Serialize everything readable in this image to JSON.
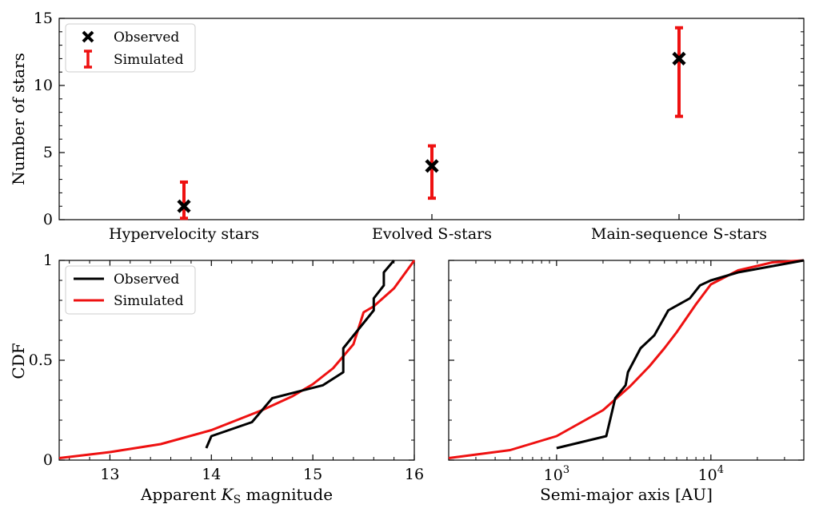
{
  "chart_data": [
    {
      "type": "scatter",
      "categories": [
        "Hypervelocity stars",
        "Evolved S-stars",
        "Main-sequence S-stars"
      ],
      "ylabel": "Number of stars",
      "xlabel": "",
      "ylim": [
        0,
        15
      ],
      "yticks": [
        "0",
        "5",
        "10",
        "15"
      ],
      "legend": {
        "placement": "top-left",
        "entries": [
          "Observed",
          "Simulated"
        ]
      },
      "series": [
        {
          "name": "Observed",
          "marker": "x",
          "color": "#000000",
          "values": [
            1,
            4,
            12
          ]
        },
        {
          "name": "Simulated",
          "marker": "errorbar",
          "color": "#ee1111",
          "lower": [
            0.1,
            1.6,
            7.7
          ],
          "upper": [
            2.8,
            5.5,
            14.3
          ]
        }
      ]
    },
    {
      "type": "line",
      "xlabel_main": "Apparent ",
      "xlabel_sym": "K",
      "xlabel_sub": "S",
      "xlabel_tail": " magnitude",
      "ylabel": "CDF",
      "xlim": [
        12.5,
        16
      ],
      "ylim": [
        0,
        1
      ],
      "xticks": [
        "13",
        "14",
        "15",
        "16"
      ],
      "yticks": [
        "0",
        "0.5",
        "1"
      ],
      "legend": {
        "placement": "top-left",
        "entries": [
          "Observed",
          "Simulated"
        ]
      },
      "series": [
        {
          "name": "Observed",
          "color": "#000000",
          "points": [
            [
              13.95,
              0.06
            ],
            [
              14.0,
              0.12
            ],
            [
              14.4,
              0.19
            ],
            [
              14.5,
              0.25
            ],
            [
              14.6,
              0.31
            ],
            [
              15.1,
              0.375
            ],
            [
              15.3,
              0.44
            ],
            [
              15.3,
              0.56
            ],
            [
              15.6,
              0.75
            ],
            [
              15.6,
              0.81
            ],
            [
              15.7,
              0.875
            ],
            [
              15.7,
              0.94
            ],
            [
              15.8,
              1.0
            ]
          ]
        },
        {
          "name": "Simulated",
          "color": "#ee1111",
          "points": [
            [
              12.5,
              0.01
            ],
            [
              13.0,
              0.04
            ],
            [
              13.5,
              0.08
            ],
            [
              14.0,
              0.15
            ],
            [
              14.5,
              0.25
            ],
            [
              14.8,
              0.32
            ],
            [
              15.0,
              0.38
            ],
            [
              15.2,
              0.46
            ],
            [
              15.4,
              0.58
            ],
            [
              15.5,
              0.74
            ],
            [
              15.6,
              0.77
            ],
            [
              15.8,
              0.86
            ],
            [
              16.0,
              1.0
            ]
          ]
        }
      ]
    },
    {
      "type": "line",
      "xlabel": "Semi-major axis [AU]",
      "ylabel": "",
      "xscale": "log",
      "xlim": [
        200,
        40000
      ],
      "ylim": [
        0,
        1
      ],
      "xticks": [
        {
          "base": "10",
          "exp": "3",
          "value": 1000
        },
        {
          "base": "10",
          "exp": "4",
          "value": 10000
        }
      ],
      "series": [
        {
          "name": "Observed",
          "color": "#000000",
          "points": [
            [
              1000,
              0.06
            ],
            [
              2100,
              0.12
            ],
            [
              2300,
              0.25
            ],
            [
              2400,
              0.31
            ],
            [
              2800,
              0.375
            ],
            [
              2900,
              0.44
            ],
            [
              3500,
              0.56
            ],
            [
              4300,
              0.625
            ],
            [
              5300,
              0.75
            ],
            [
              7300,
              0.81
            ],
            [
              8500,
              0.875
            ],
            [
              10000,
              0.9
            ],
            [
              15000,
              0.94
            ],
            [
              40000,
              1.0
            ]
          ]
        },
        {
          "name": "Simulated",
          "color": "#ee1111",
          "points": [
            [
              200,
              0.01
            ],
            [
              500,
              0.05
            ],
            [
              1000,
              0.12
            ],
            [
              2000,
              0.25
            ],
            [
              3000,
              0.37
            ],
            [
              4000,
              0.47
            ],
            [
              5000,
              0.56
            ],
            [
              6000,
              0.64
            ],
            [
              8000,
              0.78
            ],
            [
              10000,
              0.88
            ],
            [
              15000,
              0.95
            ],
            [
              25000,
              0.99
            ],
            [
              40000,
              1.0
            ]
          ]
        }
      ]
    }
  ]
}
